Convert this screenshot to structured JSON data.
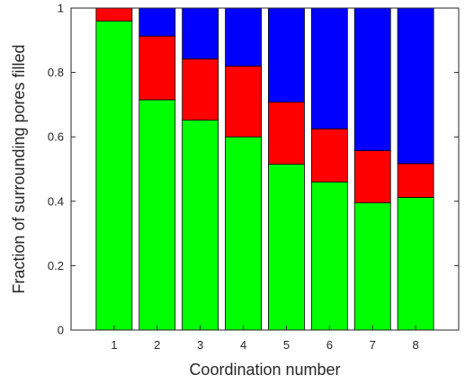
{
  "chart_data": {
    "type": "bar",
    "stacked": true,
    "categories": [
      "1",
      "2",
      "3",
      "4",
      "5",
      "6",
      "7",
      "8"
    ],
    "series": [
      {
        "color": "#00ff00",
        "values": [
          0.96,
          0.715,
          0.652,
          0.6,
          0.515,
          0.46,
          0.395,
          0.412
        ]
      },
      {
        "color": "#ff0000",
        "values": [
          0.04,
          0.198,
          0.19,
          0.22,
          0.193,
          0.165,
          0.162,
          0.105
        ]
      },
      {
        "color": "#0000ff",
        "values": [
          0.0,
          0.087,
          0.158,
          0.18,
          0.292,
          0.375,
          0.443,
          0.483
        ]
      }
    ],
    "xlabel": "Coordination number",
    "ylabel": "Fraction of surrounding pores filled",
    "ylim": [
      0,
      1
    ],
    "yticks": [
      "0",
      "0.2",
      "0.4",
      "0.6",
      "0.8",
      "1"
    ],
    "grid": false,
    "legend": "none"
  }
}
